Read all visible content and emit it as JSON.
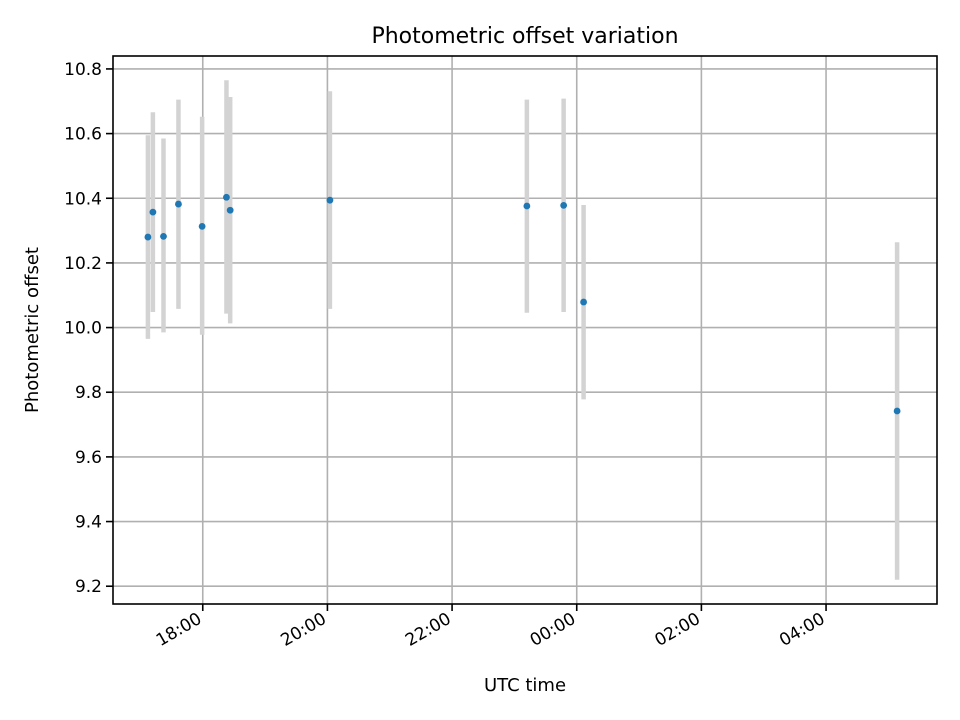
{
  "chart_data": {
    "type": "scatter",
    "title": "Photometric offset variation",
    "xlabel": "UTC time",
    "ylabel": "Photometric offset",
    "x_axis": {
      "type": "time",
      "range_hours": [
        16.56,
        29.78
      ],
      "ticks": [
        {
          "label": "18:00",
          "hour": 18
        },
        {
          "label": "20:00",
          "hour": 20
        },
        {
          "label": "22:00",
          "hour": 22
        },
        {
          "label": "00:00",
          "hour": 24
        },
        {
          "label": "02:00",
          "hour": 26
        },
        {
          "label": "04:00",
          "hour": 28
        }
      ]
    },
    "y_axis": {
      "range": [
        9.145,
        10.84
      ],
      "ticks": [
        "9.2",
        "9.4",
        "9.6",
        "9.8",
        "10.0",
        "10.2",
        "10.4",
        "10.6",
        "10.8"
      ]
    },
    "grid": true,
    "colors": {
      "point": "#1f77b4",
      "errorbar": "#d3d3d3"
    },
    "points": [
      {
        "hour": 17.12,
        "y": 10.28,
        "ylow": 9.965,
        "yhigh": 10.595
      },
      {
        "hour": 17.2,
        "y": 10.357,
        "ylow": 10.048,
        "yhigh": 10.666
      },
      {
        "hour": 17.37,
        "y": 10.282,
        "ylow": 9.985,
        "yhigh": 10.585
      },
      {
        "hour": 17.61,
        "y": 10.382,
        "ylow": 10.058,
        "yhigh": 10.705
      },
      {
        "hour": 17.99,
        "y": 10.313,
        "ylow": 9.978,
        "yhigh": 10.652
      },
      {
        "hour": 18.38,
        "y": 10.403,
        "ylow": 10.043,
        "yhigh": 10.765
      },
      {
        "hour": 18.44,
        "y": 10.363,
        "ylow": 10.013,
        "yhigh": 10.713
      },
      {
        "hour": 20.04,
        "y": 10.394,
        "ylow": 10.058,
        "yhigh": 10.731
      },
      {
        "hour": 23.2,
        "y": 10.376,
        "ylow": 10.046,
        "yhigh": 10.705
      },
      {
        "hour": 23.79,
        "y": 10.378,
        "ylow": 10.048,
        "yhigh": 10.708
      },
      {
        "hour": 24.11,
        "y": 10.079,
        "ylow": 9.778,
        "yhigh": 10.379
      },
      {
        "hour": 29.14,
        "y": 9.742,
        "ylow": 9.22,
        "yhigh": 10.264
      }
    ]
  }
}
